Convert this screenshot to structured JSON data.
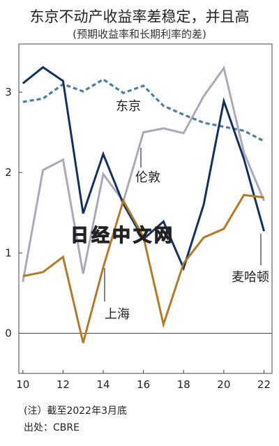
{
  "chart_data": {
    "type": "line",
    "title": "东京不动产收益率差稳定，并且高",
    "subtitle": "(预期收益率和长期利率的差)",
    "x_ticks": [
      "10",
      "12",
      "14",
      "16",
      "18",
      "20",
      "22"
    ],
    "y_ticks": [
      "0",
      "1",
      "2",
      "3"
    ],
    "xlim": [
      9.8,
      22.4
    ],
    "ylim": [
      -0.5,
      3.6
    ],
    "x": [
      10,
      11,
      12,
      13,
      14,
      15,
      16,
      17,
      18,
      19,
      20,
      21,
      22
    ],
    "series": [
      {
        "name": "东京",
        "color": "#4a7fa0",
        "style": "dashed",
        "values": [
          2.88,
          2.92,
          3.1,
          3.01,
          3.16,
          2.99,
          3.08,
          2.83,
          2.72,
          2.62,
          2.57,
          2.52,
          2.39
        ]
      },
      {
        "name": "伦敦",
        "color": "#a9a9bc",
        "style": "solid",
        "values": [
          0.64,
          2.03,
          2.16,
          0.74,
          1.98,
          1.64,
          2.5,
          2.55,
          2.49,
          2.95,
          3.3,
          2.25,
          1.65
        ]
      },
      {
        "name": "麦哈顿",
        "color": "#14305f",
        "style": "solid",
        "values": [
          3.11,
          3.31,
          3.14,
          1.49,
          2.23,
          1.61,
          1.17,
          1.39,
          0.81,
          1.6,
          2.89,
          2.17,
          1.27
        ]
      },
      {
        "name": "上海",
        "color": "#b07a28",
        "style": "solid",
        "values": [
          0.71,
          0.76,
          0.95,
          -0.12,
          0.82,
          1.65,
          1.2,
          0.11,
          0.87,
          1.19,
          1.3,
          1.72,
          1.69
        ]
      }
    ],
    "labels": {
      "tokyo": "东京",
      "london": "伦敦",
      "manhattan": "麦哈顿",
      "shanghai": "上海"
    },
    "watermark": "日经中文网",
    "grid": false,
    "legend": "inline"
  },
  "footer": {
    "note": "(注）截至2022年3月底",
    "source": "出处：CBRE"
  }
}
